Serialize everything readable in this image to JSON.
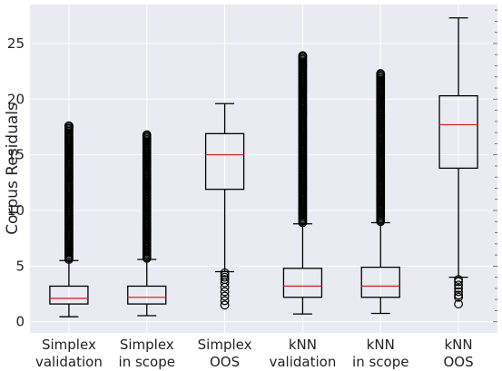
{
  "chart_data": {
    "type": "boxplot",
    "title": "",
    "xlabel": "",
    "ylabel": "Corpus Residuals",
    "ylim": [
      -1,
      28.5
    ],
    "yticks": [
      0,
      5,
      10,
      15,
      20,
      25
    ],
    "grid": true,
    "categories": [
      [
        "Simplex",
        "validation"
      ],
      [
        "Simplex",
        "in scope"
      ],
      [
        "Simplex",
        "OOS"
      ],
      [
        "kNN",
        "validation"
      ],
      [
        "kNN",
        "in scope"
      ],
      [
        "kNN",
        "OOS"
      ]
    ],
    "boxes": [
      {
        "whisker_low": 0.45,
        "q1": 1.6,
        "median": 2.1,
        "q3": 3.2,
        "whisker_high": 5.5,
        "outlier_range": [
          5.6,
          17.6
        ]
      },
      {
        "whisker_low": 0.55,
        "q1": 1.6,
        "median": 2.2,
        "q3": 3.2,
        "whisker_high": 5.6,
        "outlier_range": [
          5.7,
          16.8
        ]
      },
      {
        "whisker_low": 4.5,
        "q1": 11.9,
        "median": 15.0,
        "q3": 16.9,
        "whisker_high": 19.6,
        "outliers": [
          4.4,
          4.2,
          4.0,
          3.8,
          3.5,
          3.1,
          2.7,
          2.3,
          1.9,
          1.5
        ]
      },
      {
        "whisker_low": 0.7,
        "q1": 2.2,
        "median": 3.2,
        "q3": 4.8,
        "whisker_high": 8.8,
        "outlier_range": [
          8.9,
          23.9
        ]
      },
      {
        "whisker_low": 0.75,
        "q1": 2.2,
        "median": 3.2,
        "q3": 4.9,
        "whisker_high": 8.9,
        "outlier_range": [
          9.0,
          22.3
        ]
      },
      {
        "whisker_low": 4.0,
        "q1": 13.8,
        "median": 17.7,
        "q3": 20.3,
        "whisker_high": 27.3,
        "outliers": [
          3.8,
          3.6,
          3.3,
          3.0,
          2.7,
          2.4,
          2.2,
          1.6
        ]
      }
    ],
    "colors": {
      "background": "#eaeaf2",
      "grid": "#ffffff",
      "box": "#000000",
      "median": "#d62728"
    }
  }
}
